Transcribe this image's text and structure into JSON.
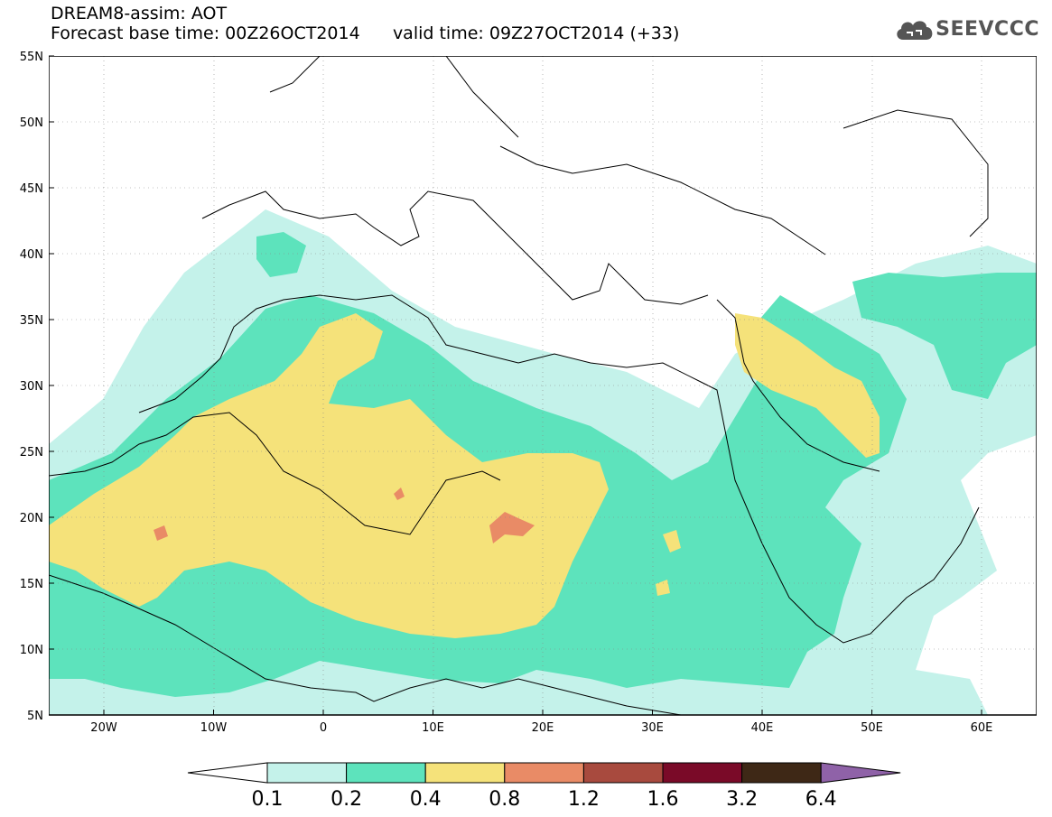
{
  "header": {
    "title": "DREAM8-assim: AOT",
    "base_time_label": "Forecast base time: 00Z26OCT2014",
    "valid_time_label": "valid time: 09Z27OCT2014 (+33)"
  },
  "logo": {
    "text": "SEEVCCC",
    "icon": "cloud-icon"
  },
  "map": {
    "lat_ticks": [
      "55N",
      "50N",
      "45N",
      "40N",
      "35N",
      "30N",
      "25N",
      "20N",
      "15N",
      "10N",
      "5N"
    ],
    "lon_ticks": [
      "20W",
      "10W",
      "0",
      "10E",
      "20E",
      "30E",
      "40E",
      "50E",
      "60E"
    ],
    "colors": {
      "c01": "#c4f2ea",
      "c02": "#5de3bc",
      "c04": "#f5e27a",
      "c08": "#e98b66"
    }
  },
  "colorbar": {
    "labels": [
      "0.1",
      "0.2",
      "0.4",
      "0.8",
      "1.2",
      "1.6",
      "3.2",
      "6.4"
    ],
    "colors": [
      "#ffffff",
      "#c4f2ea",
      "#5de3bc",
      "#f5e27a",
      "#e98b66",
      "#a84a3e",
      "#7a0a28",
      "#3e2816",
      "#8f62a8"
    ]
  }
}
